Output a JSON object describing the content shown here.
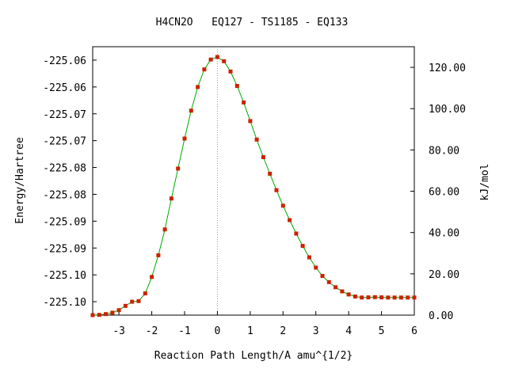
{
  "chart_data": {
    "type": "line",
    "title": "H4CN2O   EQ127 - TS1185 - EQ133",
    "xlabel": "Reaction Path Length/A amu^{1/2}",
    "ylabel_left": "Energy/Hartree",
    "ylabel_right": "kJ/mol",
    "xlim": [
      -3.8,
      6.0
    ],
    "ylim_kjmol": [
      0,
      130
    ],
    "x_ticks": [
      -3,
      -2,
      -1,
      0,
      1,
      2,
      3,
      4,
      5,
      6
    ],
    "x_tick_labels": [
      "-3",
      "-2",
      "-1",
      "0",
      "1",
      "2",
      "3",
      "4",
      "5",
      "6"
    ],
    "left_ticks_kjmol": [
      6.5,
      19.5,
      32.5,
      45.5,
      58.5,
      71.5,
      84.5,
      97.5,
      110.5,
      123.5
    ],
    "left_tick_labels": [
      "-225.10",
      "-225.10",
      "-225.09",
      "-225.09",
      "-225.08",
      "-225.08",
      "-225.07",
      "-225.07",
      "-225.06",
      "-225.06"
    ],
    "right_ticks_kjmol": [
      0,
      20,
      40,
      60,
      80,
      100,
      120
    ],
    "right_tick_labels": [
      "0.00",
      "20.00",
      "40.00",
      "60.00",
      "80.00",
      "100.00",
      "120.00"
    ],
    "ts_x": 0,
    "curve_color": "#00aa00",
    "marker_color": "#cc2200",
    "dashed_line_color": "#999999",
    "series": [
      {
        "x": [
          -3.8,
          -3.6,
          -3.4,
          -3.2,
          -3.0,
          -2.8,
          -2.6,
          -2.4,
          -2.2,
          -2.0,
          -1.8,
          -1.6,
          -1.4,
          -1.2,
          -1.0,
          -0.8,
          -0.6,
          -0.4,
          -0.2,
          0.0,
          0.2,
          0.4,
          0.6,
          0.8,
          1.0,
          1.2,
          1.4,
          1.6,
          1.8,
          2.0,
          2.2,
          2.4,
          2.6,
          2.8,
          3.0,
          3.2,
          3.4,
          3.6,
          3.8,
          4.0,
          4.2,
          4.4,
          4.6,
          4.8,
          5.0,
          5.2,
          5.4,
          5.6,
          5.8,
          6.0
        ],
        "y": [
          0.0,
          0.1,
          0.5,
          1.2,
          2.4,
          4.5,
          6.5,
          6.8,
          10.5,
          18.5,
          29.0,
          41.5,
          56.5,
          71.0,
          85.5,
          99.0,
          110.5,
          119.0,
          123.8,
          125.0,
          123.0,
          118.0,
          111.0,
          103.0,
          94.0,
          85.0,
          76.5,
          68.5,
          60.5,
          53.0,
          46.0,
          39.5,
          33.5,
          28.0,
          23.0,
          19.0,
          16.0,
          13.5,
          11.5,
          10.0,
          9.0,
          8.5,
          8.6,
          8.7,
          8.6,
          8.5,
          8.5,
          8.5,
          8.5,
          8.5
        ]
      }
    ]
  }
}
